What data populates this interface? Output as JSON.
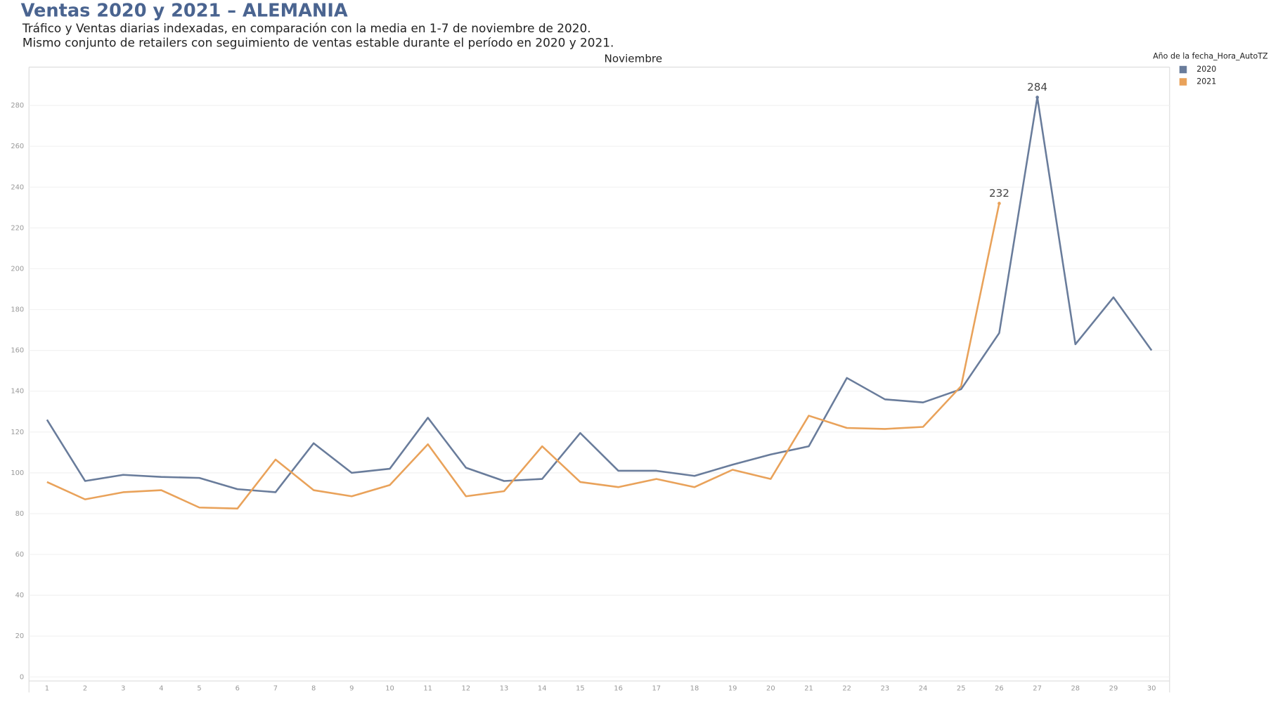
{
  "chart_data": {
    "type": "line",
    "title": "Ventas 2020 y 2021 – ALEMANIA",
    "subtitle": [
      "Tráfico y Ventas diarias indexadas, en comparación con la media en 1-7 de noviembre de 2020.",
      "Mismo conjunto de retailers con seguimiento de ventas estable durante el período en 2020 y 2021."
    ],
    "x_header": "Noviembre",
    "legend_title": "Año de la fecha_Hora_AutoTZ",
    "legend": "top-right",
    "grid": true,
    "categories": [
      "1",
      "2",
      "3",
      "4",
      "5",
      "6",
      "7",
      "8",
      "9",
      "10",
      "11",
      "12",
      "13",
      "14",
      "15",
      "16",
      "17",
      "18",
      "19",
      "20",
      "21",
      "22",
      "23",
      "24",
      "25",
      "26",
      "27",
      "28",
      "29",
      "30"
    ],
    "series": [
      {
        "name": "2020",
        "color": "#697c9b",
        "values": [
          126,
          96,
          99,
          98,
          97.5,
          92,
          90.5,
          114.5,
          100,
          102,
          127,
          102.5,
          96,
          97,
          119.5,
          101,
          101,
          98.5,
          104,
          109,
          113,
          146.5,
          136,
          134.5,
          141,
          168.5,
          284,
          163,
          186,
          160
        ],
        "labeled": [
          26
        ]
      },
      {
        "name": "2021",
        "color": "#e9a25a",
        "values": [
          95.5,
          87,
          90.5,
          91.5,
          83,
          82.5,
          106.5,
          91.5,
          88.5,
          94,
          114,
          88.5,
          91,
          113,
          95.5,
          93,
          97,
          93,
          101.5,
          97,
          128,
          122,
          121.5,
          122.5,
          142.5,
          232,
          null,
          null,
          null,
          null
        ],
        "labeled": [
          25
        ]
      }
    ],
    "ylim": [
      0,
      298
    ],
    "yticks": [
      0,
      20,
      40,
      60,
      80,
      100,
      120,
      140,
      160,
      180,
      200,
      220,
      240,
      260,
      280
    ]
  }
}
